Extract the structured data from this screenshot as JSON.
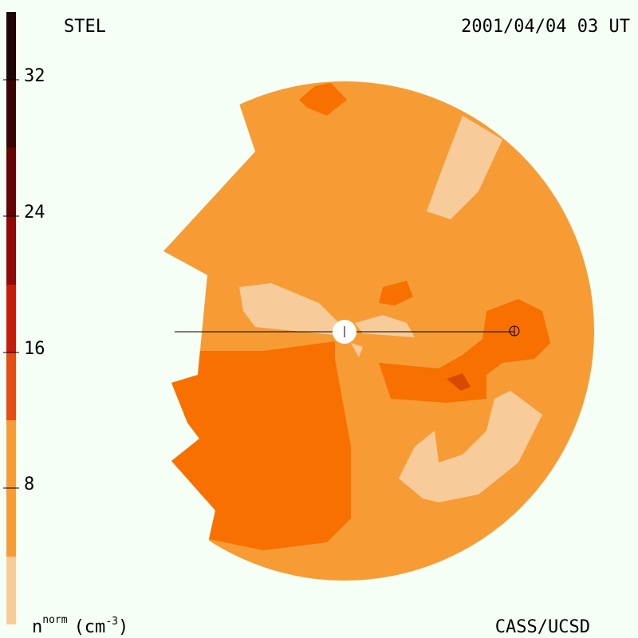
{
  "header": {
    "left": "STEL",
    "right": "2001/04/04 03 UT"
  },
  "colorbar": {
    "ticks": [
      "32",
      "24",
      "16",
      "8"
    ],
    "unit": "n",
    "unit_sup": "norm",
    "unit_rest": "(cm",
    "unit_exp": "-3",
    "unit_close": ")"
  },
  "footer": {
    "right": "CASS/UCSD"
  }
}
